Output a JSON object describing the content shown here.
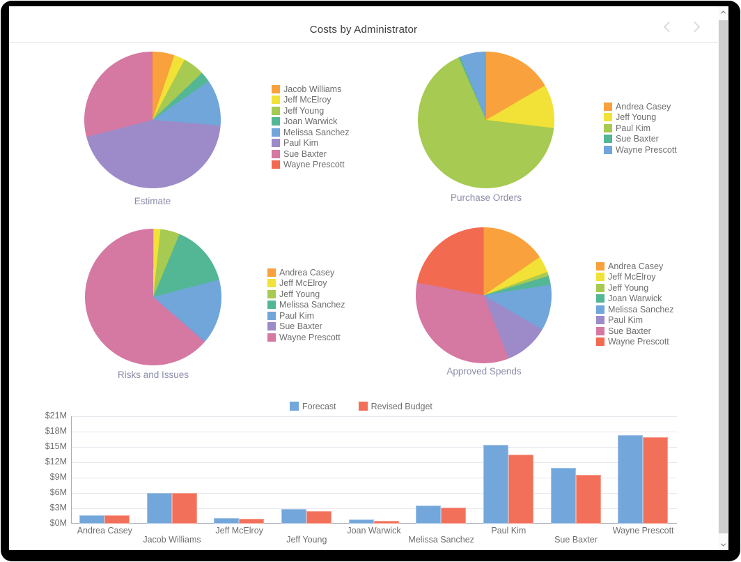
{
  "header": {
    "title": "Costs by Administrator",
    "menu_icon": "hamburger-menu",
    "prev_icon": "chevron-left",
    "next_icon": "chevron-right"
  },
  "scrollbar": {
    "up_icon": "chevron-up",
    "down_icon": "chevron-down"
  },
  "colors": {
    "forecast": "#73A7DB",
    "revised_budget": "#F2705A",
    "caption_text": "#8B8CA9",
    "legend_text": "#6E6E6E",
    "palette": [
      "#F9A13C",
      "#F2E136",
      "#A6CA52",
      "#53B795",
      "#70A6DA",
      "#9C8BC8",
      "#D578A2",
      "#F26A50"
    ]
  },
  "chart_data": [
    {
      "type": "pie",
      "title": "Estimate",
      "legend_position": "right",
      "slices": [
        {
          "name": "Jacob Williams",
          "value": 5.2,
          "color": "#F9A13C"
        },
        {
          "name": "Jeff McElroy",
          "value": 2.6,
          "color": "#F2E136"
        },
        {
          "name": "Jeff Young",
          "value": 5.1,
          "color": "#A6CA52"
        },
        {
          "name": "Joan Warwick",
          "value": 2.5,
          "color": "#53B795"
        },
        {
          "name": "Melissa Sanchez",
          "value": 10.9,
          "color": "#70A6DA"
        },
        {
          "name": "Paul Kim",
          "value": 44.7,
          "color": "#9C8BC8"
        },
        {
          "name": "Sue Baxter",
          "value": 28.9,
          "color": "#D578A2"
        },
        {
          "name": "Wayne Prescott",
          "value": 0.1,
          "color": "#F26A50"
        }
      ]
    },
    {
      "type": "pie",
      "title": "Purchase Orders",
      "legend_position": "right",
      "slices": [
        {
          "name": "Andrea Casey",
          "value": 16.6,
          "color": "#F9A13C"
        },
        {
          "name": "Jeff Young",
          "value": 10.3,
          "color": "#F2E136"
        },
        {
          "name": "Paul Kim",
          "value": 66.5,
          "color": "#A6CA52"
        },
        {
          "name": "Sue Baxter",
          "value": 0.4,
          "color": "#53B795"
        },
        {
          "name": "Wayne Prescott",
          "value": 6.2,
          "color": "#70A6DA"
        }
      ]
    },
    {
      "type": "pie",
      "title": "Risks and Issues",
      "legend_position": "right",
      "slices": [
        {
          "name": "Andrea Casey",
          "value": 0.1,
          "color": "#F9A13C"
        },
        {
          "name": "Jeff McElroy",
          "value": 1.6,
          "color": "#F2E136"
        },
        {
          "name": "Jeff Young",
          "value": 4.6,
          "color": "#A6CA52"
        },
        {
          "name": "Melissa Sanchez",
          "value": 14.6,
          "color": "#53B795"
        },
        {
          "name": "Paul Kim",
          "value": 15.3,
          "color": "#70A6DA"
        },
        {
          "name": "Sue Baxter",
          "value": 0.3,
          "color": "#9C8BC8"
        },
        {
          "name": "Wayne Prescott",
          "value": 63.5,
          "color": "#D578A2"
        }
      ]
    },
    {
      "type": "pie",
      "title": "Approved Spends",
      "legend_position": "right",
      "slices": [
        {
          "name": "Andrea Casey",
          "value": 15.5,
          "color": "#F9A13C"
        },
        {
          "name": "Jeff McElroy",
          "value": 3.9,
          "color": "#F2E136"
        },
        {
          "name": "Jeff Young",
          "value": 1.0,
          "color": "#A6CA52"
        },
        {
          "name": "Joan Warwick",
          "value": 2.1,
          "color": "#53B795"
        },
        {
          "name": "Melissa Sanchez",
          "value": 10.9,
          "color": "#70A6DA"
        },
        {
          "name": "Paul Kim",
          "value": 10.6,
          "color": "#9C8BC8"
        },
        {
          "name": "Sue Baxter",
          "value": 34.0,
          "color": "#D578A2"
        },
        {
          "name": "Wayne Prescott",
          "value": 22.0,
          "color": "#F26A50"
        }
      ]
    },
    {
      "type": "bar",
      "title": "",
      "legend_position": "top",
      "grid": true,
      "categories": [
        "Andrea Casey",
        "Jacob Williams",
        "Jeff McElroy",
        "Jeff Young",
        "Joan Warwick",
        "Melissa Sanchez",
        "Paul Kim",
        "Sue Baxter",
        "Wayne Prescott"
      ],
      "series": [
        {
          "name": "Forecast",
          "color": "#73A7DB",
          "values": [
            1.7,
            6.0,
            1.1,
            2.9,
            0.8,
            3.5,
            15.4,
            10.9,
            17.3
          ]
        },
        {
          "name": "Revised Budget",
          "color": "#F2705A",
          "values": [
            1.6,
            6.0,
            0.9,
            2.4,
            0.6,
            3.1,
            13.5,
            9.6,
            16.9
          ]
        }
      ],
      "ylabel": "",
      "xlabel": "",
      "ylim": [
        0,
        21
      ],
      "y_tick_step": 3,
      "y_tick_labels": [
        "$0M",
        "$3M",
        "$6M",
        "$9M",
        "$12M",
        "$15M",
        "$18M",
        "$21M"
      ]
    }
  ]
}
